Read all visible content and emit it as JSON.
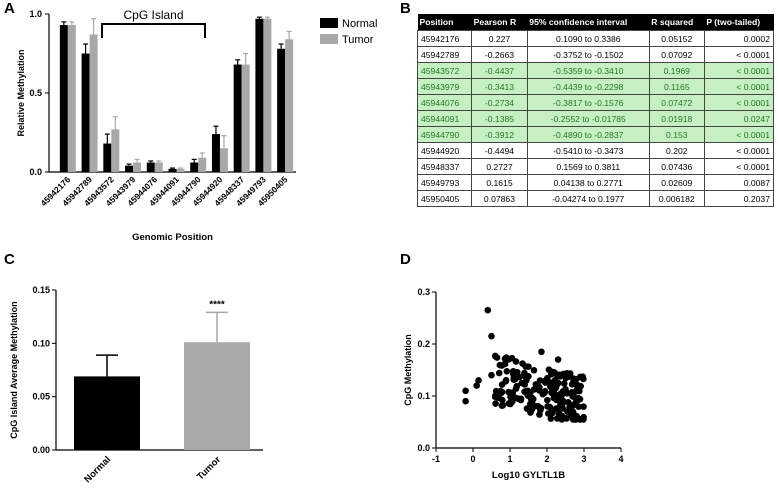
{
  "panels": {
    "a": "A",
    "b": "B",
    "c": "C",
    "d": "D"
  },
  "chart_data": [
    {
      "type": "bar",
      "panel": "A",
      "ylabel": "Relative Methylation",
      "xlabel": "Genomic Position",
      "ylim": [
        0,
        1.0
      ],
      "yticks": [
        "0.0",
        "0.5",
        "1.0"
      ],
      "annotation": "CpG Island",
      "categories": [
        "45942176",
        "45942789",
        "45943572",
        "45943979",
        "45944076",
        "45944091",
        "45944790",
        "45944920",
        "45948337",
        "45949793",
        "45950405"
      ],
      "series": [
        {
          "name": "Normal",
          "color": "#000000",
          "values": [
            0.93,
            0.75,
            0.18,
            0.04,
            0.06,
            0.02,
            0.06,
            0.24,
            0.68,
            0.97,
            0.78
          ],
          "errors": [
            0.02,
            0.06,
            0.06,
            0.01,
            0.01,
            0.005,
            0.02,
            0.05,
            0.03,
            0.01,
            0.03
          ]
        },
        {
          "name": "Tumor",
          "color": "#a8a8a8",
          "values": [
            0.93,
            0.87,
            0.27,
            0.06,
            0.06,
            0.02,
            0.09,
            0.15,
            0.68,
            0.97,
            0.84
          ],
          "errors": [
            0.02,
            0.1,
            0.08,
            0.02,
            0.01,
            0.005,
            0.03,
            0.08,
            0.07,
            0.01,
            0.05
          ]
        }
      ],
      "legend": [
        "Normal",
        "Tumor"
      ]
    },
    {
      "type": "bar",
      "panel": "C",
      "ylabel": "CpG Island Average Methylation",
      "ylim": [
        0,
        0.15
      ],
      "yticks": [
        "0.00",
        "0.05",
        "0.10",
        "0.15"
      ],
      "categories": [
        "Normal",
        "Tumor"
      ],
      "values": [
        0.069,
        0.101
      ],
      "errors": [
        0.02,
        0.028
      ],
      "colors": [
        "#000000",
        "#a8a8a8"
      ],
      "significance": "****"
    },
    {
      "type": "scatter",
      "panel": "D",
      "xlabel": "Log10 GYLTL1B",
      "ylabel": "CpG Methylation",
      "xlim": [
        -1,
        4
      ],
      "ylim": [
        0,
        0.3
      ],
      "xticks": [
        "-1",
        "0",
        "1",
        "2",
        "3",
        "4"
      ],
      "yticks": [
        "0.0",
        "0.1",
        "0.2",
        "0.3"
      ]
    }
  ],
  "table": {
    "headers": [
      "Position",
      "Pearson R",
      "95% confidence interval",
      "R squared",
      "P (two-tailed)"
    ],
    "rows": [
      {
        "position": "45942176",
        "r": "0.227",
        "ci": "0.1090 to 0.3386",
        "r2": "0.05152",
        "p": "0.0002",
        "hl": false
      },
      {
        "position": "45942789",
        "r": "-0.2663",
        "ci": "-0.3752 to -0.1502",
        "r2": "0.07092",
        "p": "< 0.0001",
        "hl": false
      },
      {
        "position": "45943572",
        "r": "-0.4437",
        "ci": "-0.5359 to -0.3410",
        "r2": "0.1969",
        "p": "< 0.0001",
        "hl": true
      },
      {
        "position": "45943979",
        "r": "-0.3413",
        "ci": "-0.4439 to -0.2298",
        "r2": "0.1165",
        "p": "< 0.0001",
        "hl": true
      },
      {
        "position": "45944076",
        "r": "-0.2734",
        "ci": "-0.3817 to -0.1576",
        "r2": "0.07472",
        "p": "< 0.0001",
        "hl": true
      },
      {
        "position": "45944091",
        "r": "-0.1385",
        "ci": "-0.2552 to -0.01785",
        "r2": "0.01918",
        "p": "0.0247",
        "hl": true
      },
      {
        "position": "45944790",
        "r": "-0.3912",
        "ci": "-0.4890 to -0.2837",
        "r2": "0.153",
        "p": "< 0.0001",
        "hl": true
      },
      {
        "position": "45944920",
        "r": "-0.4494",
        "ci": "-0.5410 to -0.3473",
        "r2": "0.202",
        "p": "< 0.0001",
        "hl": false
      },
      {
        "position": "45948337",
        "r": "0.2727",
        "ci": "0.1569 to 0.3811",
        "r2": "0.07436",
        "p": "< 0.0001",
        "hl": false
      },
      {
        "position": "45949793",
        "r": "0.1615",
        "ci": "0.04138 to 0.2771",
        "r2": "0.02609",
        "p": "0.0087",
        "hl": false
      },
      {
        "position": "45950405",
        "r": "0.07863",
        "ci": "-0.04274 to 0.1977",
        "r2": "0.006182",
        "p": "0.2037",
        "hl": false
      }
    ]
  }
}
